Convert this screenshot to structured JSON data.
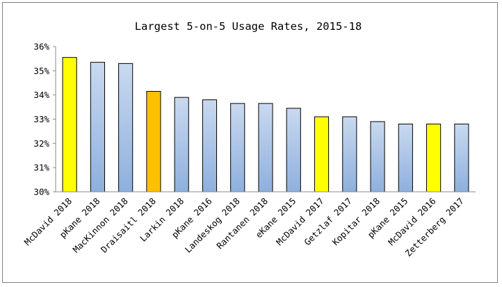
{
  "chart_data": {
    "type": "bar",
    "title": "Largest 5-on-5 Usage Rates, 2015-18",
    "xlabel": "",
    "ylabel": "",
    "ylim": [
      30,
      36
    ],
    "yticks": [
      "30%",
      "31%",
      "32%",
      "33%",
      "34%",
      "35%",
      "36%"
    ],
    "grid": false,
    "legend": "none",
    "categories": [
      "McDavid 2018",
      "pKane 2018",
      "MacKinnon 2018",
      "Draisaitl 2018",
      "Larkin 2018",
      "pKane 2016",
      "Landeskog 2018",
      "Rantanen 2018",
      "eKane 2015",
      "McDavid 2017",
      "Getzlaf 2017",
      "Kopitar 2018",
      "pKane 2015",
      "McDavid 2016",
      "Zetterberg 2017"
    ],
    "values": [
      35.55,
      35.35,
      35.3,
      34.15,
      33.9,
      33.8,
      33.65,
      33.65,
      33.45,
      33.1,
      33.1,
      32.9,
      32.8,
      32.8,
      32.8
    ],
    "bar_colors": [
      "#ffff00",
      "#a8c1e4",
      "#a8c1e4",
      "#ffc000",
      "#a8c1e4",
      "#a8c1e4",
      "#a8c1e4",
      "#a8c1e4",
      "#a8c1e4",
      "#ffff00",
      "#a8c1e4",
      "#a8c1e4",
      "#a8c1e4",
      "#ffff00",
      "#a8c1e4"
    ],
    "bar_gradient_top": "#c9d9ef",
    "bar_gradient_bottom": "#8eb0de",
    "bar_outline": "#000000"
  }
}
